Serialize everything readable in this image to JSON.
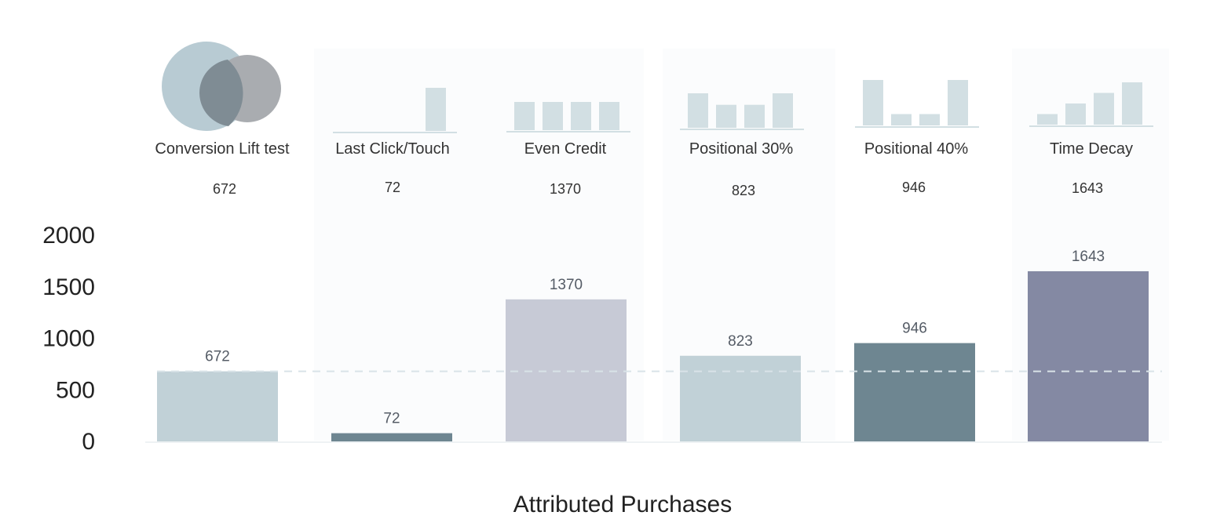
{
  "chart_data": {
    "type": "bar",
    "xlabel": "Attributed Purchases",
    "ylabel": "",
    "ylim": [
      0,
      2000
    ],
    "yticks": [
      0,
      500,
      1000,
      1500,
      2000
    ],
    "categories": [
      "Conversion Lift test",
      "Last Click/Touch",
      "Even Credit",
      "Positional 30%",
      "Positional 40%",
      "Time Decay"
    ],
    "values": [
      672,
      72,
      1370,
      823,
      946,
      1643
    ],
    "header_values": [
      "672",
      "72",
      "1370",
      "823",
      "946",
      "1643"
    ],
    "data_labels": [
      "672",
      "72",
      "1370",
      "823",
      "946",
      "1643"
    ],
    "bar_colors": [
      "#c1d1d7",
      "#6e8691",
      "#c7cad6",
      "#c1d1d7",
      "#6e8691",
      "#8489a3"
    ],
    "reference_line": {
      "value": 672,
      "style": "dashed",
      "color": "#d9e3e8"
    },
    "credit_icons": {
      "last_click": [
        0,
        0,
        0,
        1
      ],
      "even_credit": [
        1,
        1,
        1,
        1
      ],
      "positional_30": [
        0.3,
        0.2,
        0.2,
        0.3
      ],
      "positional_40": [
        0.4,
        0.1,
        0.1,
        0.4
      ],
      "time_decay": [
        0.1,
        0.2,
        0.3,
        0.4
      ]
    },
    "icon_color": "#d2dfe3",
    "venn_colors": [
      "#b8cbd3",
      "#a9acb0",
      "#7f8c94"
    ]
  }
}
